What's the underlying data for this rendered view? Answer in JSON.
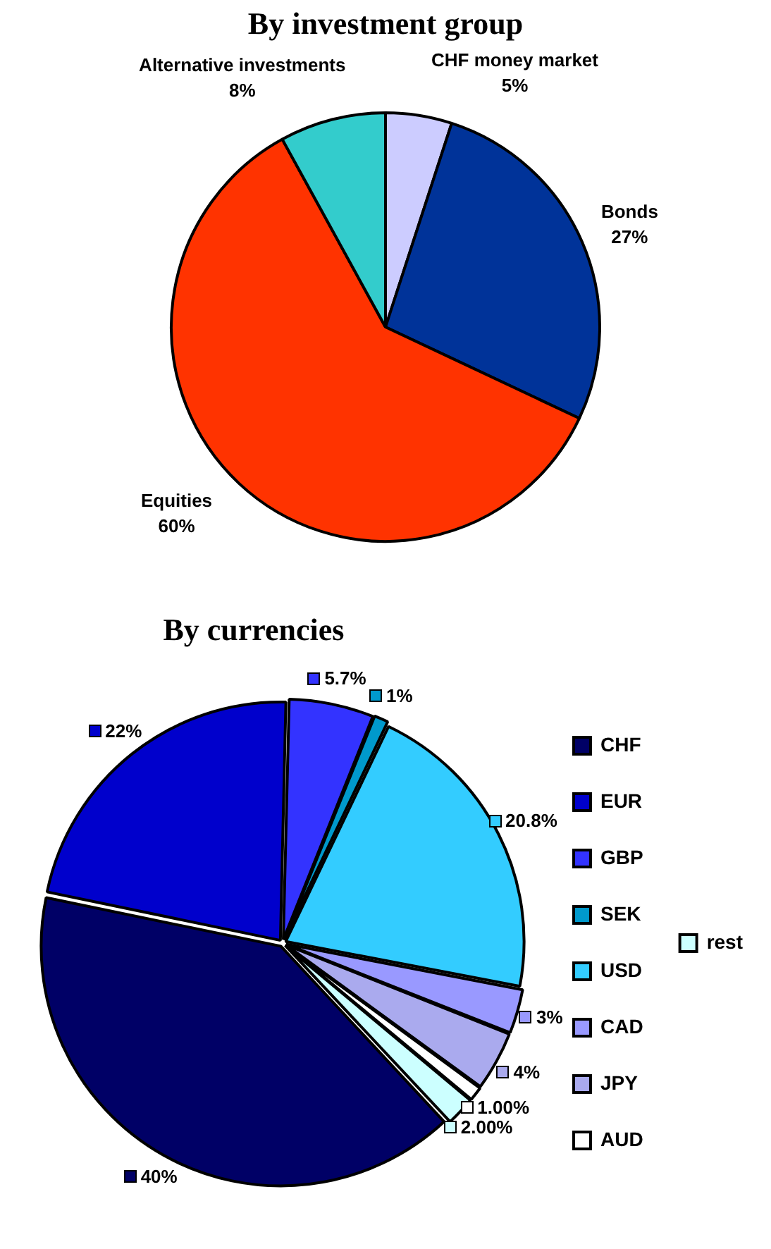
{
  "chart_data": [
    {
      "type": "pie",
      "title": "By investment group",
      "categories": [
        "CHF money market",
        "Bonds",
        "Equities",
        "Alternative investments"
      ],
      "values": [
        5,
        27,
        60,
        8
      ],
      "colors": [
        "#ccccff",
        "#003399",
        "#ff3300",
        "#33cccc"
      ],
      "value_labels": [
        "5%",
        "27%",
        "60%",
        "8%"
      ],
      "legend": false
    },
    {
      "type": "pie",
      "title": "By currencies",
      "categories": [
        "CHF",
        "EUR",
        "GBP",
        "SEK",
        "USD",
        "CAD",
        "JPY",
        "AUD",
        "rest"
      ],
      "values": [
        40,
        22,
        5.7,
        1,
        20.8,
        3,
        4,
        1.0,
        2.0
      ],
      "colors": [
        "#000066",
        "#0000cc",
        "#3333ff",
        "#0099cc",
        "#33ccff",
        "#9999ff",
        "#aaaaee",
        "#ffffff",
        "#ccffff"
      ],
      "value_labels": [
        "40%",
        "22%",
        "5.7%",
        "1%",
        "20.8%",
        "3%",
        "4%",
        "1.00%",
        "2.00%"
      ],
      "legend": "right"
    }
  ]
}
